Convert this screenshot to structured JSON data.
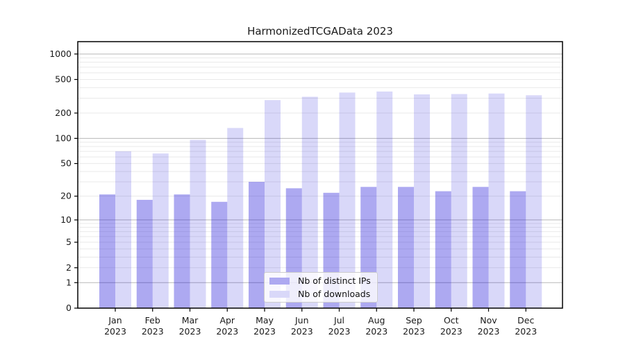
{
  "chart_data": {
    "type": "bar",
    "title": "HarmonizedTCGAData 2023",
    "categories": [
      "Jan",
      "Feb",
      "Mar",
      "Apr",
      "May",
      "Jun",
      "Jul",
      "Aug",
      "Sep",
      "Oct",
      "Nov",
      "Dec"
    ],
    "year": "2023",
    "series": [
      {
        "name": "Nb of distinct IPs",
        "color": "rgba(20,10,215,0.35)",
        "swatch": "#ada9f1",
        "values": [
          21,
          18,
          21,
          17,
          30,
          25,
          22,
          26,
          26,
          23,
          26,
          23
        ]
      },
      {
        "name": "Nb of downloads",
        "color": "rgba(20,10,215,0.16)",
        "swatch": "#d9d8f9",
        "values": [
          70,
          66,
          96,
          133,
          285,
          312,
          350,
          360,
          333,
          336,
          341,
          325
        ]
      }
    ],
    "yscale": "log10(1+x)",
    "yticks": [
      0,
      1,
      2,
      5,
      10,
      20,
      50,
      100,
      200,
      500,
      1000
    ],
    "ylim": [
      0,
      1400
    ],
    "grid": true,
    "legend_position": "lower center",
    "colors": {
      "grid_major": "#b8b8b8",
      "grid_minor": "#e9e9e9",
      "axis": "#000000",
      "text": "#1a1a1a"
    }
  }
}
